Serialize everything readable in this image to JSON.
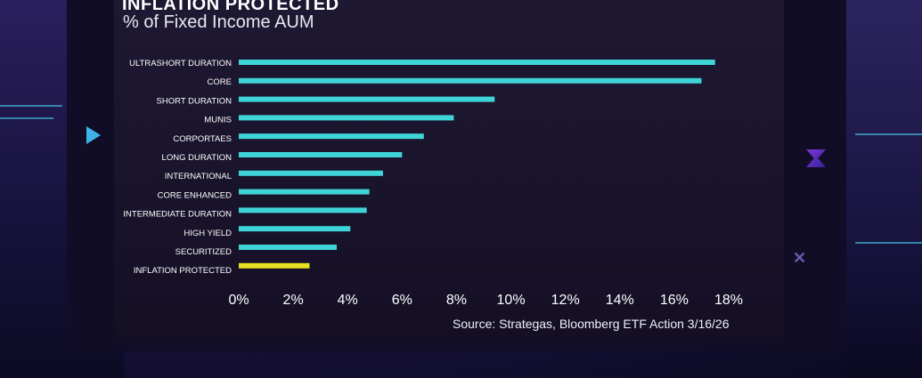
{
  "header": {
    "title": "INFLATION PROTECTED",
    "subtitle": "% of Fixed Income AUM"
  },
  "source": "Source: Strategas, Bloomberg ETF Action 3/16/26",
  "colors": {
    "bar": "#3fd4d8",
    "highlight": "#e8e020",
    "text": "#ffffff",
    "panel": "#1a1430"
  },
  "chart_data": {
    "type": "bar",
    "orientation": "horizontal",
    "categories": [
      "ULTRASHORT DURATION",
      "CORE",
      "SHORT DURATION",
      "MUNIS",
      "CORPORTAES",
      "LONG DURATION",
      "INTERNATIONAL",
      "CORE ENHANCED",
      "INTERMEDIATE DURATION",
      "HIGH YIELD",
      "SECURITIZED",
      "INFLATION PROTECTED"
    ],
    "values": [
      17.5,
      17.0,
      9.4,
      7.9,
      6.8,
      6.0,
      5.3,
      4.8,
      4.7,
      4.1,
      3.6,
      2.6
    ],
    "highlight_category": "INFLATION PROTECTED",
    "xlim": [
      0,
      18
    ],
    "xticks": [
      "0%",
      "2%",
      "4%",
      "6%",
      "8%",
      "10%",
      "12%",
      "14%",
      "16%",
      "18%"
    ],
    "xtick_values": [
      0,
      2,
      4,
      6,
      8,
      10,
      12,
      14,
      16,
      18
    ],
    "grid": false,
    "legend": "none"
  }
}
